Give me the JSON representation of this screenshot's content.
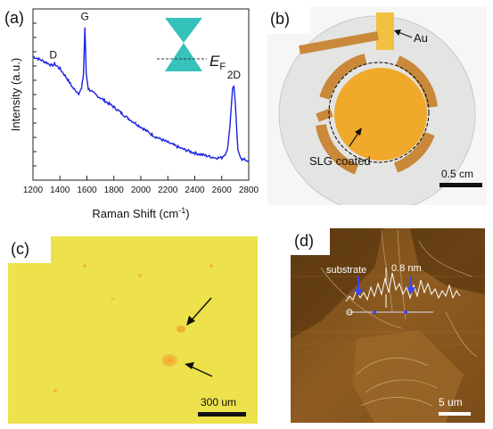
{
  "panels": {
    "a": {
      "label": "(a)",
      "chart_data": {
        "type": "line",
        "xlabel": "Raman Shift (cm",
        "xlabel_sup": "-1",
        "xlabel_end": ")",
        "ylabel": "Intensity (a.u.)",
        "xlim": [
          1200,
          2800
        ],
        "x_ticks": [
          "1200",
          "1400",
          "1600",
          "1800",
          "2000",
          "2200",
          "2400",
          "2600",
          "2800"
        ],
        "y_tick_labels_shown": false,
        "series_color": "#1a22e0",
        "peak_labels": [
          {
            "text": "D",
            "x": 1350
          },
          {
            "text": "G",
            "x": 1585
          },
          {
            "text": "2D",
            "x": 2690
          }
        ],
        "x": [
          1200,
          1250,
          1300,
          1340,
          1360,
          1400,
          1450,
          1500,
          1540,
          1560,
          1575,
          1585,
          1595,
          1610,
          1650,
          1700,
          1800,
          1900,
          2000,
          2100,
          2200,
          2300,
          2400,
          2450,
          2500,
          2550,
          2600,
          2640,
          2660,
          2680,
          2690,
          2700,
          2720,
          2750,
          2800
        ],
        "y_relative": [
          0.76,
          0.74,
          0.72,
          0.7,
          0.71,
          0.68,
          0.62,
          0.55,
          0.52,
          0.55,
          0.65,
          0.95,
          0.65,
          0.55,
          0.52,
          0.49,
          0.43,
          0.36,
          0.3,
          0.24,
          0.2,
          0.16,
          0.13,
          0.12,
          0.11,
          0.1,
          0.1,
          0.14,
          0.3,
          0.55,
          0.57,
          0.45,
          0.14,
          0.09,
          0.08
        ]
      },
      "inset": {
        "label_main": "E",
        "label_sub": "F",
        "cone_color": "#35c2bb"
      }
    },
    "b": {
      "label": "(b)",
      "annotation_au": "Au",
      "annotation_slg": "SLG coated",
      "scale_bar": "0.5 cm",
      "colors": {
        "gold": "#c9883a",
        "film": "#f0a92a",
        "disc": "#e6e6e4"
      }
    },
    "c": {
      "label": "(c)",
      "scale_bar": "300 um",
      "colors": {
        "background": "#ede24b",
        "flake": "#f0b838"
      }
    },
    "d": {
      "label": "(d)",
      "annotation_substrate": "substrate",
      "annotation_height": "0.8 nm",
      "scale_bar": "5 um",
      "colors": {
        "background": "#8a5a1e",
        "dark": "#4a2a08",
        "light": "#d8b070"
      }
    }
  }
}
